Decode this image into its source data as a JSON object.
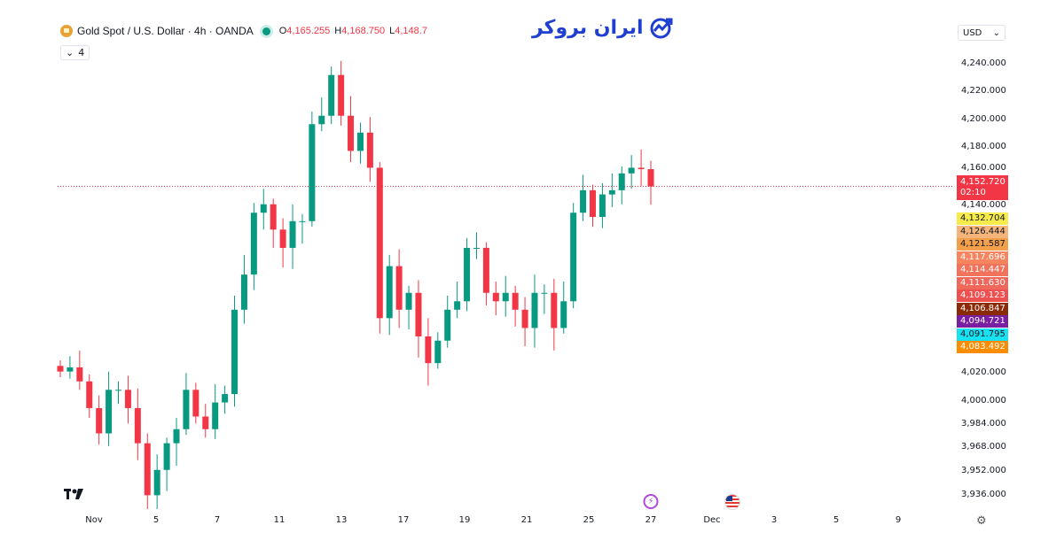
{
  "header": {
    "symbol": "Gold Spot / U.S. Dollar · 4h · OANDA",
    "open_label": "O",
    "open": "4,165.255",
    "high_label": "H",
    "high": "4,168.750",
    "low_label": "L",
    "low": "4,148.7",
    "collapse_count": "4"
  },
  "watermark": {
    "brand": "ایران بروکر"
  },
  "currency": "USD",
  "price_axis": {
    "ticks": [
      "4,240.000",
      "4,220.000",
      "4,200.000",
      "4,180.000",
      "4,160.000",
      "4,140.000",
      "4,020.000",
      "4,000.000",
      "3,984.000",
      "3,968.000",
      "3,952.000",
      "3,936.000"
    ]
  },
  "price_labels": [
    {
      "value": "4,152.720",
      "sub": "02:10",
      "color": "#f23645",
      "text": "#ffffff"
    },
    {
      "value": "4,132.704",
      "color": "#f7ea4b",
      "text": "#131722"
    },
    {
      "value": "4,126.444",
      "color": "#f4b47a",
      "text": "#131722"
    },
    {
      "value": "4,121.587",
      "color": "#f2a04c",
      "text": "#131722"
    },
    {
      "value": "4,117.696",
      "color": "#f5845f",
      "text": "#ffffff"
    },
    {
      "value": "4,114.447",
      "color": "#f2735c",
      "text": "#ffffff"
    },
    {
      "value": "4,111.630",
      "color": "#f0675b",
      "text": "#ffffff"
    },
    {
      "value": "4,109.123",
      "color": "#ee4f4f",
      "text": "#ffffff"
    },
    {
      "value": "4,106.847",
      "color": "#8b2a06",
      "text": "#ffffff"
    },
    {
      "value": "4,094.721",
      "color": "#7b1fa2",
      "text": "#ffffff"
    },
    {
      "value": "4,091.795",
      "color": "#18e2f2",
      "text": "#131722"
    },
    {
      "value": "4,083.492",
      "color": "#fb8c00",
      "text": "#ffffff"
    }
  ],
  "time_axis": [
    "Nov",
    "5",
    "7",
    "11",
    "13",
    "17",
    "19",
    "21",
    "25",
    "27",
    "Dec",
    "3",
    "5",
    "9"
  ],
  "chart_data": {
    "type": "candlestick",
    "timeframe": "4h",
    "up_color": "#089981",
    "down_color": "#f23645",
    "current_price": 4152.72,
    "ylim": [
      3936,
      4240
    ],
    "closes": [
      4021,
      4024,
      4014,
      3995,
      3977,
      4008,
      4008,
      3995,
      3970,
      3933,
      3951,
      3970,
      3980,
      4008,
      3989,
      3980,
      3999,
      4005,
      4065,
      4090,
      4134,
      4140,
      4122,
      4109,
      4128,
      4128,
      4197,
      4203,
      4232,
      4203,
      4178,
      4191,
      4166,
      4059,
      4096,
      4065,
      4077,
      4046,
      4027,
      4043,
      4065,
      4071,
      4109,
      4109,
      4077,
      4071,
      4077,
      4065,
      4052,
      4077,
      4077,
      4052,
      4071,
      4134,
      4150,
      4131,
      4147,
      4150,
      4162,
      4166,
      4165,
      4152.72
    ]
  }
}
